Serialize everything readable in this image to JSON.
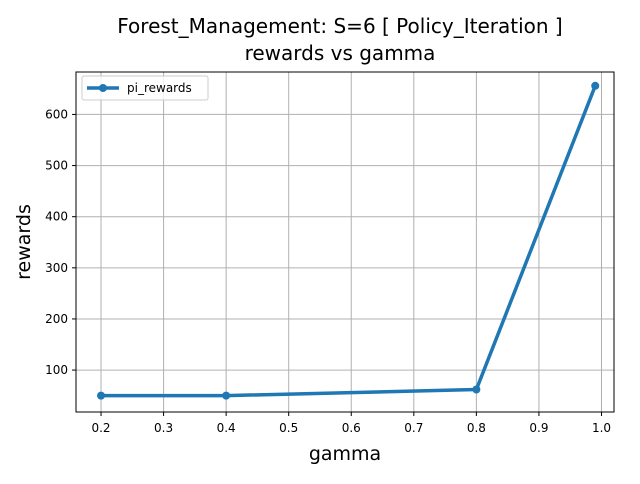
{
  "chart_data": {
    "type": "line",
    "title": "Forest_Management: S=6 [ Policy_Iteration ]",
    "subtitle": "rewards vs gamma",
    "xlabel": "gamma",
    "ylabel": "rewards",
    "xlim": [
      0.16,
      1.02
    ],
    "ylim": [
      18,
      683
    ],
    "xticks": [
      0.2,
      0.3,
      0.4,
      0.5,
      0.6,
      0.7,
      0.8,
      0.9,
      1.0
    ],
    "xtick_labels": [
      "0.2",
      "0.3",
      "0.4",
      "0.5",
      "0.6",
      "0.7",
      "0.8",
      "0.9",
      "1.0"
    ],
    "yticks": [
      100,
      200,
      300,
      400,
      500,
      600
    ],
    "ytick_labels": [
      "100",
      "200",
      "300",
      "400",
      "500",
      "600"
    ],
    "grid": true,
    "legend_position": "top-left",
    "series": [
      {
        "name": "pi_rewards",
        "color": "#1f77b4",
        "marker": "circle",
        "x": [
          0.2,
          0.4,
          0.8,
          0.99
        ],
        "y": [
          50,
          50,
          62,
          656
        ]
      }
    ]
  }
}
